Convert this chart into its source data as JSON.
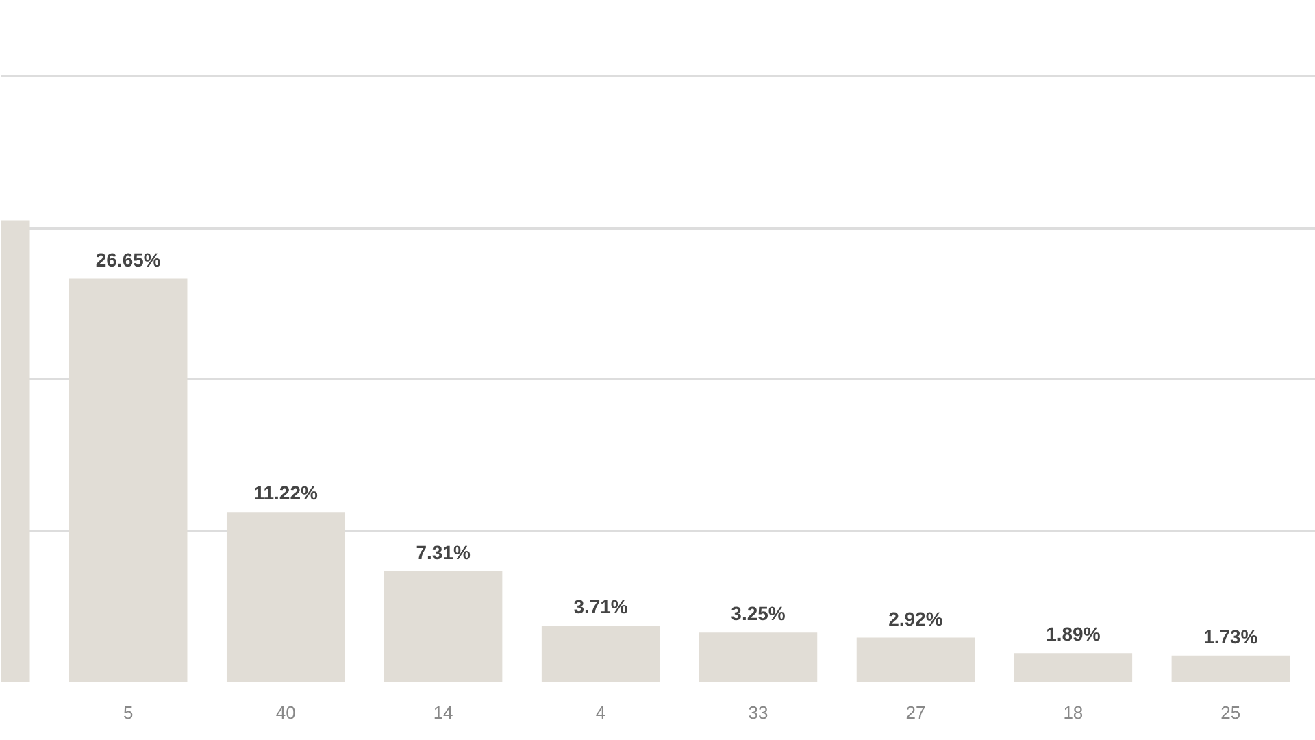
{
  "chart_data": {
    "type": "bar",
    "categories": [
      null,
      "5",
      "40",
      "14",
      "4",
      "33",
      "27",
      "18",
      "25"
    ],
    "values": [
      30.5,
      26.65,
      11.22,
      7.31,
      3.71,
      3.25,
      2.92,
      1.89,
      1.73
    ],
    "value_labels": [
      null,
      "26.65%",
      "11.22%",
      "7.31%",
      "3.71%",
      "3.25%",
      "2.92%",
      "1.89%",
      "1.73%"
    ],
    "color": "#e1ddd6",
    "grid": "y",
    "tick_labels": "x"
  }
}
